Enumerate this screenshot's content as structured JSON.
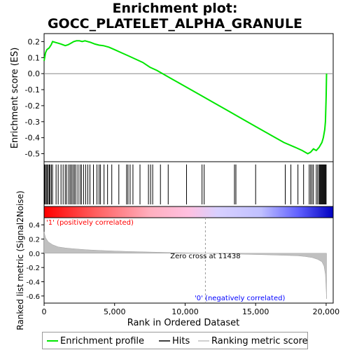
{
  "title": "Enrichment plot: GOCC_PLATELET_ALPHA_GRANULE",
  "chart_data": {
    "type": "line",
    "title": "Enrichment plot: GOCC_PLATELET_ALPHA_GRANULE",
    "xlabel": "Rank in Ordered Dataset",
    "es_panel": {
      "ylabel": "Enrichment score (ES)",
      "ylim": [
        -0.55,
        0.25
      ],
      "yticks": [
        "0.2",
        "0.1",
        "0.0",
        "-0.1",
        "-0.2",
        "-0.3",
        "-0.4",
        "-0.5"
      ],
      "ytick_values": [
        0.2,
        0.1,
        0.0,
        -0.1,
        -0.2,
        -0.3,
        -0.4,
        -0.5
      ],
      "color": "#00e600",
      "x": [
        0,
        100,
        200,
        350,
        500,
        600,
        800,
        1000,
        1200,
        1500,
        1700,
        1900,
        2100,
        2300,
        2500,
        2700,
        2900,
        3100,
        3300,
        3600,
        3900,
        4200,
        4600,
        5000,
        5500,
        6000,
        6500,
        7000,
        7500,
        8000,
        9000,
        10000,
        11000,
        12000,
        13000,
        14000,
        15000,
        16000,
        17000,
        17800,
        18300,
        18700,
        18900,
        19100,
        19300,
        19500,
        19700,
        19800,
        19900,
        19950,
        20000,
        20030
      ],
      "y": [
        0.08,
        0.13,
        0.15,
        0.16,
        0.18,
        0.2,
        0.195,
        0.19,
        0.185,
        0.175,
        0.18,
        0.19,
        0.2,
        0.205,
        0.205,
        0.2,
        0.205,
        0.2,
        0.195,
        0.185,
        0.178,
        0.175,
        0.165,
        0.15,
        0.13,
        0.11,
        0.09,
        0.07,
        0.04,
        0.02,
        -0.03,
        -0.08,
        -0.13,
        -0.18,
        -0.23,
        -0.28,
        -0.33,
        -0.38,
        -0.43,
        -0.46,
        -0.48,
        -0.5,
        -0.49,
        -0.47,
        -0.48,
        -0.46,
        -0.43,
        -0.4,
        -0.35,
        -0.3,
        -0.15,
        0.0
      ]
    },
    "hits": [
      30,
      80,
      160,
      220,
      300,
      380,
      420,
      520,
      600,
      850,
      1000,
      1200,
      1350,
      1500,
      1600,
      1750,
      1850,
      1950,
      2050,
      2150,
      2250,
      2400,
      2550,
      2650,
      2800,
      2950,
      3100,
      3250,
      3500,
      3750,
      3900,
      4000,
      4250,
      4500,
      4800,
      5300,
      5850,
      5950,
      6100,
      6300,
      6800,
      7400,
      7550,
      7700,
      8250,
      8800,
      10100,
      11200,
      11350,
      13500,
      13600,
      15000,
      17100,
      17500,
      18000,
      18400,
      18800,
      18900,
      19000,
      19100,
      19300,
      19400,
      19500,
      19550,
      19600,
      19650,
      19700,
      19750,
      19800,
      19850,
      19900,
      19950,
      20000
    ],
    "metric_panel": {
      "ylabel": "Ranked list metric (Signal2Noise)",
      "ylim": [
        -0.7,
        0.5
      ],
      "yticks": [
        "0.4",
        "0.2",
        "0.0",
        "-0.2",
        "-0.4",
        "-0.6"
      ],
      "ytick_values": [
        0.4,
        0.2,
        0.0,
        -0.2,
        -0.4,
        -0.6
      ],
      "x": [
        0,
        100,
        300,
        600,
        1000,
        1500,
        2000,
        3000,
        4000,
        5000,
        6000,
        7000,
        8000,
        9000,
        10000,
        11000,
        11438,
        12000,
        13000,
        14000,
        15000,
        16000,
        17000,
        18000,
        18500,
        19000,
        19400,
        19700,
        19850,
        19950,
        20000,
        20030
      ],
      "y": [
        0.3,
        0.22,
        0.16,
        0.12,
        0.09,
        0.075,
        0.065,
        0.05,
        0.04,
        0.032,
        0.025,
        0.02,
        0.015,
        0.01,
        0.006,
        0.002,
        0.0,
        -0.003,
        -0.007,
        -0.012,
        -0.017,
        -0.022,
        -0.028,
        -0.035,
        -0.045,
        -0.06,
        -0.085,
        -0.12,
        -0.18,
        -0.3,
        -0.5,
        -0.64
      ]
    },
    "xlim": [
      0,
      20500
    ],
    "xticks": [
      "0",
      "5,000",
      "10,000",
      "15,000",
      "20,000"
    ],
    "xtick_values": [
      0,
      5000,
      10000,
      15000,
      20000
    ],
    "zero_cross_label": "Zero cross at 11438",
    "zero_cross": 11438,
    "pos_label": "'1' (positively correlated)",
    "neg_label": "'0' (negatively correlated)"
  },
  "legend": {
    "profile": "Enrichment profile",
    "hits": "Hits",
    "ranking": "Ranking metric scores"
  },
  "colors": {
    "es_line": "#00e600",
    "pos_label": "#ff0000",
    "neg_label": "#0000ff"
  }
}
